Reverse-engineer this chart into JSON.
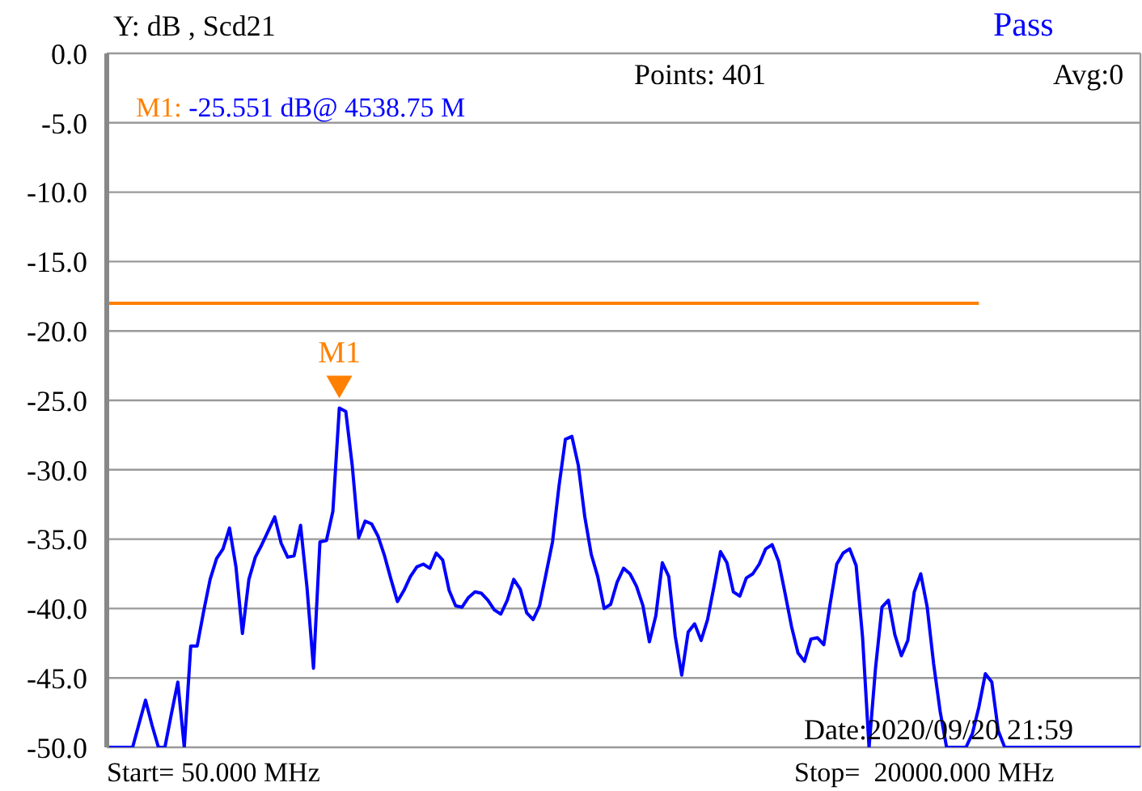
{
  "chart_data": {
    "type": "line",
    "ylabel": "Y: dB , Scd21",
    "annotations": [
      "M1: -25.551 dB@ 4538.75 M",
      "Points: 401",
      "Avg:0",
      "Pass",
      "Date:2020/09/20 21:59",
      "Start= 50.000 MHz",
      "Stop=  20000.000 MHz",
      {
        "text": "M1",
        "y": -25.551
      }
    ],
    "categories": [
      null,
      null,
      null,
      null,
      null,
      null,
      null,
      null,
      null,
      null,
      null,
      null,
      null,
      null,
      null,
      null,
      null,
      null,
      null,
      null,
      null,
      null,
      null,
      null,
      null,
      null,
      null,
      null,
      null,
      null,
      null,
      null,
      null,
      null,
      null,
      null,
      null,
      null,
      null,
      null,
      null,
      null,
      null,
      null,
      null,
      null,
      null,
      null,
      null,
      null,
      null,
      null,
      null,
      null,
      null,
      null,
      null,
      null,
      null,
      null,
      null,
      null,
      null,
      null,
      null,
      null,
      null,
      null,
      null,
      null,
      null,
      null,
      null,
      null,
      null,
      null,
      null,
      null,
      null,
      null,
      null,
      null,
      null,
      null,
      null,
      null,
      null,
      null,
      null,
      null,
      null,
      null,
      null,
      null,
      null,
      null,
      null,
      null,
      null,
      null,
      null,
      null,
      null,
      null,
      null,
      null,
      null,
      null,
      null,
      null,
      null,
      null,
      null,
      null,
      null,
      null,
      null,
      null,
      null,
      null,
      null,
      null,
      null,
      null,
      null,
      null,
      null,
      null,
      null,
      null,
      null,
      null,
      null,
      null,
      null,
      null,
      null,
      null,
      null,
      null,
      null,
      null,
      null,
      null,
      null,
      null,
      null,
      null,
      null,
      null,
      null,
      null,
      null,
      null,
      null,
      null,
      null,
      null,
      null,
      null,
      null
    ],
    "ylim": [
      -50,
      0
    ],
    "yticks": [
      {
        "value": 0,
        "label": "0.0"
      },
      {
        "value": -5,
        "label": "-5.0"
      },
      {
        "value": -10,
        "label": "-10.0"
      },
      {
        "value": -15,
        "label": "-15.0"
      },
      {
        "value": -20,
        "label": "-20.0"
      },
      {
        "value": -25,
        "label": "-25.0"
      },
      {
        "value": -30,
        "label": "-30.0"
      },
      {
        "value": -35,
        "label": "-35.0"
      },
      {
        "value": -40,
        "label": "-40.0"
      },
      {
        "value": -45,
        "label": "-45.0"
      },
      {
        "value": -50,
        "label": "-50.0"
      }
    ],
    "tick_labels": "y",
    "grid": true,
    "marker": "none",
    "series": [
      {
        "color": "#0000ff",
        "values": [
          -50,
          -50,
          -50,
          -50,
          -50,
          -48.3,
          -46.6,
          -48.4,
          -50,
          -50,
          -47.6,
          -45.3,
          -50,
          -42.7,
          -42.7,
          -40.2,
          -37.9,
          -36.4,
          -35.7,
          -34.2,
          -37.0,
          -41.8,
          -37.9,
          -36.3,
          -35.4,
          -34.4,
          -33.4,
          -35.3,
          -36.3,
          -36.2,
          -34.0,
          -38.5,
          -44.3,
          -35.2,
          -35.1,
          -33.0,
          -25.551,
          -25.8,
          -29.7,
          -34.9,
          -33.7,
          -33.9,
          -34.8,
          -36.2,
          -37.9,
          -39.5,
          -38.7,
          -37.7,
          -37.0,
          -36.8,
          -37.1,
          -36.0,
          -36.5,
          -38.7,
          -39.8,
          -39.9,
          -39.2,
          -38.8,
          -38.9,
          -39.4,
          -40.1,
          -40.4,
          -39.4,
          -37.9,
          -38.6,
          -40.3,
          -40.8,
          -39.8,
          -37.5,
          -35.2,
          -31.2,
          -27.8,
          -27.6,
          -29.7,
          -33.4,
          -36.1,
          -37.7,
          -40.0,
          -39.7,
          -38.1,
          -37.1,
          -37.5,
          -38.4,
          -39.8,
          -42.4,
          -40.5,
          -36.7,
          -37.7,
          -42.0,
          -44.8,
          -41.7,
          -41.1,
          -42.3,
          -40.8,
          -38.4,
          -35.9,
          -36.7,
          -38.8,
          -39.1,
          -37.8,
          -37.5,
          -36.8,
          -35.7,
          -35.4,
          -36.6,
          -38.9,
          -41.3,
          -43.2,
          -43.8,
          -42.2,
          -42.1,
          -42.6,
          -39.6,
          -36.8,
          -36.0,
          -35.7,
          -36.9,
          -42.1,
          -50,
          -44.3,
          -39.9,
          -39.4,
          -41.9,
          -43.4,
          -42.3,
          -38.8,
          -37.5,
          -39.9,
          -44.0,
          -47.4,
          -50,
          -50,
          -50,
          -50,
          -49.0,
          -47.1,
          -44.7,
          -45.3,
          -48.8,
          -50,
          -50,
          -50,
          -50,
          -50,
          -50,
          -50,
          -50,
          -50,
          -50,
          -50,
          -50,
          -50,
          -50,
          -50,
          -50,
          -50,
          -50,
          -50,
          -50,
          -50,
          -50
        ]
      },
      {
        "color": "#ff8000",
        "values": [
          -18,
          -18,
          -18,
          -18,
          -18,
          -18,
          -18,
          -18,
          -18,
          -18,
          -18,
          -18,
          -18,
          -18,
          -18,
          -18,
          -18,
          -18,
          -18,
          -18,
          -18,
          -18,
          -18,
          -18,
          -18,
          -18,
          -18,
          -18,
          -18,
          -18,
          -18,
          -18,
          -18,
          -18,
          -18,
          -18,
          -18,
          -18,
          -18,
          -18,
          -18,
          -18,
          -18,
          -18,
          -18,
          -18,
          -18,
          -18,
          -18,
          -18,
          -18,
          -18,
          -18,
          -18,
          -18,
          -18,
          -18,
          -18,
          -18,
          -18,
          -18,
          -18,
          -18,
          -18,
          -18,
          -18,
          -18,
          -18,
          -18,
          -18,
          -18,
          -18,
          -18,
          -18,
          -18,
          -18,
          -18,
          -18,
          -18,
          -18,
          -18,
          -18,
          -18,
          -18,
          -18,
          -18,
          -18,
          -18,
          -18,
          -18,
          -18,
          -18,
          -18,
          -18,
          -18,
          -18,
          -18,
          -18,
          -18,
          -18,
          -18,
          -18,
          -18,
          -18,
          -18,
          -18,
          -18,
          -18,
          -18,
          -18,
          -18,
          -18,
          -18,
          -18,
          -18,
          -18,
          -18,
          -18,
          -18,
          -18,
          -18,
          -18,
          -18,
          -18,
          -18,
          -18,
          -18,
          -18,
          -18,
          -18,
          -18,
          -18,
          -18,
          -18,
          -18,
          -18,
          null,
          null,
          null,
          null,
          null,
          null,
          null,
          null,
          null,
          null,
          null,
          null,
          null,
          null,
          null,
          null,
          null,
          null,
          null,
          null,
          null,
          null,
          null,
          null,
          null
        ]
      }
    ]
  }
}
